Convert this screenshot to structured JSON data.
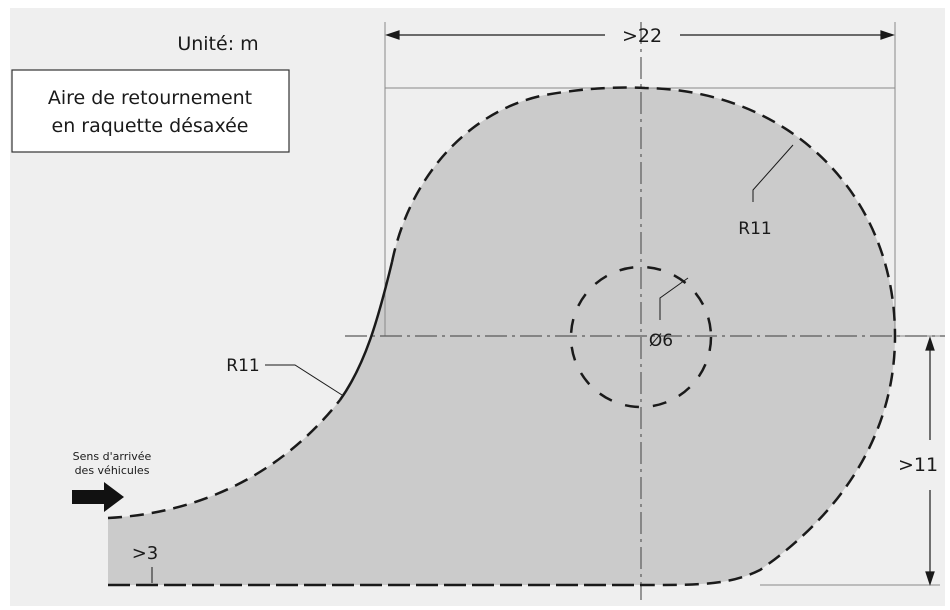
{
  "unit_label": "Unité: m",
  "title_lines": [
    "Aire de retournement",
    "en raquette désaxée"
  ],
  "arrival_lines": [
    "Sens d'arrivée",
    "des véhicules"
  ],
  "dimensions": {
    "width_label": ">22",
    "height_label": ">11",
    "lane_width_label": ">3",
    "radius_right_label": "R11",
    "radius_left_label": "R11",
    "island_diameter_label": "Ø6"
  },
  "colors": {
    "background": "#ffffff",
    "paper": "#efefef",
    "area_fill": "#cbcbcb",
    "line": "#1a1a1a",
    "guide_line": "#8a8a8a"
  },
  "icons": {
    "arrival_arrow": "arrow-right-icon"
  }
}
